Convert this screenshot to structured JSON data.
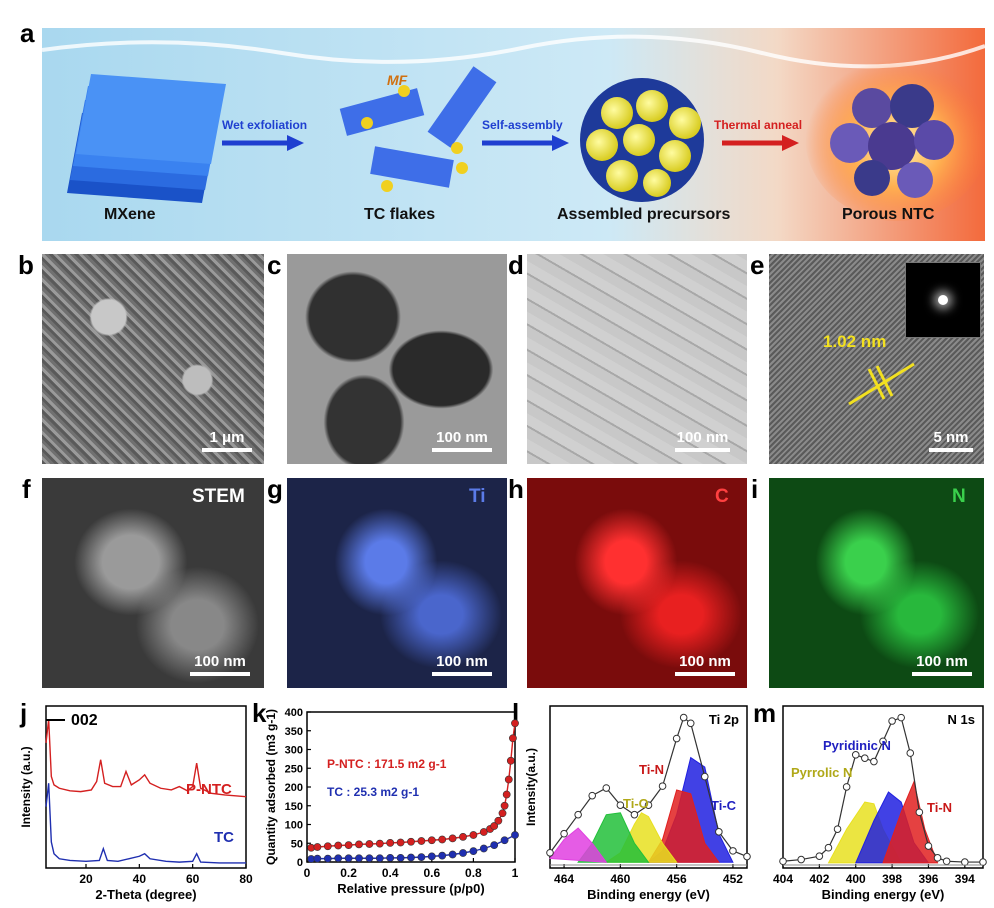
{
  "panels": {
    "a": "a",
    "b": "b",
    "c": "c",
    "d": "d",
    "e": "e",
    "f": "f",
    "g": "g",
    "h": "h",
    "i": "i",
    "j": "j",
    "k": "k",
    "l": "l",
    "m": "m"
  },
  "schematic": {
    "mxene": "MXene",
    "tc_flakes": "TC flakes",
    "assembled": "Assembled precursors",
    "porous": "Porous NTC",
    "mf": "MF",
    "step1": "Wet exfoliation",
    "step2": "Self-assembly",
    "step3": "Thermal anneal"
  },
  "micrographs": {
    "b_scale": "1 μm",
    "c_scale": "100 nm",
    "d_scale": "100 nm",
    "e_scale": "5 nm",
    "e_spacing": "1.02 nm",
    "f_label": "STEM",
    "f_scale": "100 nm",
    "g_label": "Ti",
    "g_scale": "100 nm",
    "h_label": "C",
    "h_scale": "100 nm",
    "i_label": "N",
    "i_scale": "100 nm"
  },
  "colors": {
    "ptc_red": "#d42020",
    "tc_blue": "#1f2fb0",
    "ti_blue": "#5b7be8",
    "c_red": "#e01818",
    "n_green": "#28b83c",
    "schematic_bg": "#bfe3f4",
    "fire": "#ff7a30"
  },
  "chart_data": [
    {
      "panel": "j",
      "type": "line",
      "xlabel": "2-Theta (degree)",
      "ylabel": "Intensity (a.u.)",
      "xlim": [
        5,
        80
      ],
      "xticks": [
        20,
        40,
        60,
        80
      ],
      "annotation": "002",
      "series": [
        {
          "name": "P-NTC",
          "color": "#d42020",
          "x": [
            5,
            6,
            7,
            8,
            10,
            14,
            18,
            22,
            24,
            25.5,
            27,
            30,
            33,
            35,
            37,
            40,
            42,
            44,
            48,
            52,
            55,
            58,
            60,
            61.5,
            63,
            67,
            72,
            76,
            80
          ],
          "y": [
            8.6,
            10.0,
            6.6,
            6.1,
            5.9,
            5.75,
            5.7,
            5.8,
            6.3,
            7.6,
            6.2,
            6.0,
            6.0,
            6.9,
            6.1,
            6.4,
            6.7,
            6.2,
            5.9,
            5.8,
            6.0,
            5.75,
            6.0,
            7.4,
            5.9,
            5.6,
            5.5,
            5.45,
            5.4
          ]
        },
        {
          "name": "TC",
          "color": "#1f2fb0",
          "x": [
            5,
            6,
            7,
            8,
            10,
            14,
            20,
            25,
            26.5,
            28,
            32,
            36,
            40,
            42,
            44,
            50,
            55,
            60,
            61.5,
            63,
            70,
            75,
            80
          ],
          "y": [
            4.8,
            6.2,
            2.7,
            2.0,
            1.7,
            1.6,
            1.55,
            1.6,
            2.3,
            1.6,
            1.55,
            1.7,
            1.85,
            2.0,
            1.7,
            1.55,
            1.5,
            1.55,
            2.0,
            1.5,
            1.45,
            1.45,
            1.45
          ]
        }
      ]
    },
    {
      "panel": "k",
      "type": "line",
      "xlabel": "Relative pressure (p/p0)",
      "ylabel": "Quantity adsorbed (m3 g-1)",
      "xlim": [
        0,
        1.0
      ],
      "ylim": [
        0,
        400
      ],
      "xticks": [
        0.0,
        0.2,
        0.4,
        0.6,
        0.8,
        1.0
      ],
      "yticks": [
        0,
        50,
        100,
        150,
        200,
        250,
        300,
        350,
        400
      ],
      "annotations": [
        "P-NTC : 171.5 m2 g-1",
        "TC : 25.3 m2 g-1"
      ],
      "series": [
        {
          "name": "P-NTC",
          "color": "#d42020",
          "x": [
            0.02,
            0.05,
            0.1,
            0.15,
            0.2,
            0.25,
            0.3,
            0.35,
            0.4,
            0.45,
            0.5,
            0.55,
            0.6,
            0.65,
            0.7,
            0.75,
            0.8,
            0.85,
            0.88,
            0.9,
            0.92,
            0.94,
            0.95,
            0.96,
            0.97,
            0.98,
            0.99,
            1.0
          ],
          "y": [
            38,
            40,
            42,
            44,
            45,
            47,
            48,
            49,
            51,
            52,
            54,
            56,
            58,
            60,
            63,
            67,
            72,
            80,
            88,
            96,
            110,
            130,
            150,
            180,
            220,
            270,
            330,
            370
          ]
        },
        {
          "name": "TC",
          "color": "#1f2fb0",
          "x": [
            0.02,
            0.05,
            0.1,
            0.15,
            0.2,
            0.25,
            0.3,
            0.35,
            0.4,
            0.45,
            0.5,
            0.55,
            0.6,
            0.65,
            0.7,
            0.75,
            0.8,
            0.85,
            0.9,
            0.95,
            1.0
          ],
          "y": [
            8,
            9,
            9,
            10,
            10,
            10,
            10,
            10,
            11,
            11,
            12,
            13,
            15,
            17,
            20,
            24,
            29,
            36,
            45,
            58,
            72
          ]
        }
      ]
    },
    {
      "panel": "l",
      "type": "line",
      "xlabel": "Binding energy (eV)",
      "ylabel": "Intensity(a.u.)",
      "title": "Ti 2p",
      "xlim": [
        465,
        451
      ],
      "xticks": [
        464,
        460,
        456,
        452
      ],
      "labels": [
        "Ti-N",
        "Ti-O",
        "Ti-C"
      ],
      "series": [
        {
          "name": "Ti-C",
          "color": "#2020e0",
          "x": [
            452,
            453,
            454,
            455,
            456,
            457,
            458
          ],
          "y": [
            0,
            1.5,
            5.0,
            5.5,
            2.5,
            0.6,
            0
          ]
        },
        {
          "name": "Ti-N",
          "color": "#e02020",
          "x": [
            453,
            454,
            455,
            456,
            457,
            458
          ],
          "y": [
            0,
            1.0,
            3.6,
            3.8,
            1.2,
            0
          ]
        },
        {
          "name": "Ti-O",
          "color": "#e8e020",
          "x": [
            456,
            457,
            458,
            458.5,
            459,
            460,
            461
          ],
          "y": [
            0,
            1.0,
            2.4,
            2.6,
            2.0,
            0.5,
            0
          ]
        },
        {
          "name": "",
          "color": "#22c03a",
          "x": [
            458,
            459,
            460,
            461,
            462,
            463
          ],
          "y": [
            0,
            1.0,
            2.6,
            2.5,
            1.0,
            0
          ]
        },
        {
          "name": "",
          "color": "#e040e0",
          "x": [
            461,
            462,
            463,
            464,
            465
          ],
          "y": [
            0,
            1.0,
            1.8,
            1.2,
            0.2
          ]
        },
        {
          "name": "raw",
          "color": "#555555",
          "x": [
            465,
            464,
            463,
            462,
            461,
            460,
            459,
            458,
            457,
            456,
            455.5,
            455,
            454,
            453,
            452,
            451
          ],
          "y": [
            0.5,
            1.5,
            2.5,
            3.5,
            3.9,
            3.0,
            2.5,
            3.0,
            4.0,
            6.5,
            7.6,
            7.3,
            4.5,
            1.6,
            0.6,
            0.3
          ]
        }
      ]
    },
    {
      "panel": "m",
      "type": "line",
      "xlabel": "Binding energy (eV)",
      "title": "N 1s",
      "xlim": [
        404,
        393
      ],
      "xticks": [
        404,
        402,
        400,
        398,
        396,
        394
      ],
      "labels": [
        "Pyridinic N",
        "Pyrrolic N",
        "Ti-N"
      ],
      "series": [
        {
          "name": "Pyrrolic N",
          "color": "#e8e020",
          "x": [
            401.5,
            400.5,
            399.5,
            399,
            398.5,
            397.5
          ],
          "y": [
            0,
            2.0,
            3.6,
            3.5,
            2.0,
            0
          ]
        },
        {
          "name": "Pyridinic N",
          "color": "#2020e0",
          "x": [
            400,
            399,
            398.2,
            397.5,
            396.8,
            396
          ],
          "y": [
            0,
            2.5,
            4.2,
            3.6,
            1.2,
            0
          ]
        },
        {
          "name": "Ti-N",
          "color": "#e02020",
          "x": [
            398.5,
            397.5,
            396.8,
            396.2,
            395.5
          ],
          "y": [
            0,
            3.0,
            4.8,
            2.0,
            0
          ]
        },
        {
          "name": "raw",
          "color": "#555555",
          "x": [
            404,
            403,
            402,
            401.5,
            401,
            400.5,
            400,
            399.5,
            399,
            398.5,
            398,
            397.5,
            397,
            396.5,
            396,
            395.5,
            395,
            394,
            393
          ],
          "y": [
            0.1,
            0.2,
            0.4,
            0.9,
            2.0,
            4.5,
            6.4,
            6.2,
            6.0,
            7.2,
            8.4,
            8.6,
            6.5,
            3.0,
            1.0,
            0.3,
            0.1,
            0.05,
            0.05
          ]
        }
      ]
    }
  ]
}
